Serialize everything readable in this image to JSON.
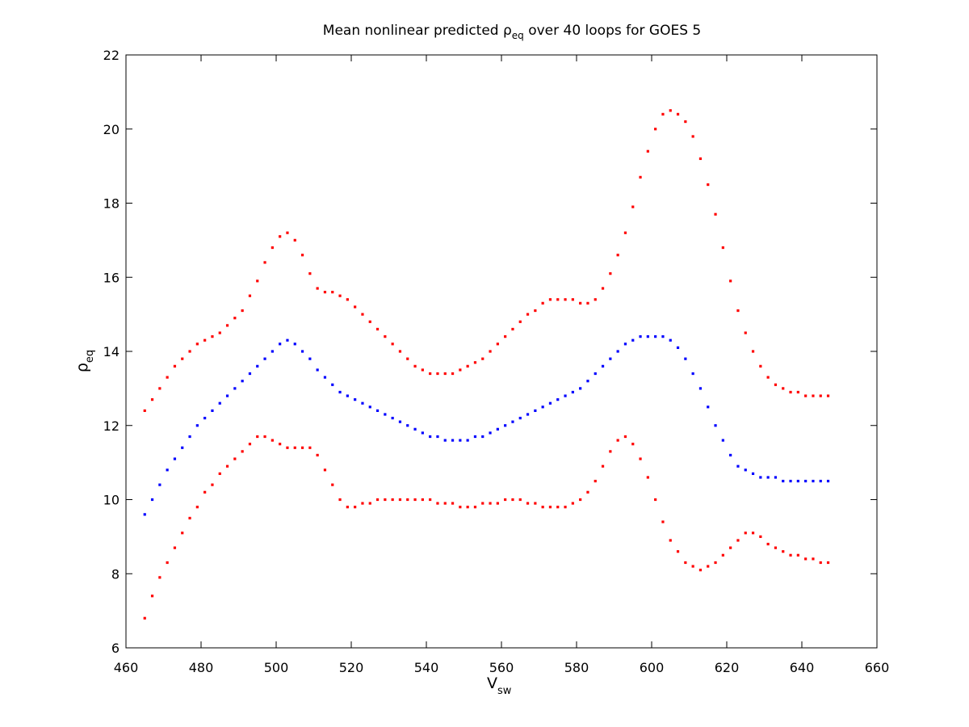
{
  "chart_data": {
    "type": "scatter",
    "title": {
      "prefix": "Mean nonlinear predicted ",
      "symbol": "ρ",
      "subscript": "eq",
      "suffix": " over 40 loops for GOES 5"
    },
    "xlabel": {
      "main": "V",
      "subscript": "sw"
    },
    "ylabel": {
      "main": "ρ",
      "subscript": "eq"
    },
    "xlim": [
      460,
      660
    ],
    "ylim": [
      6,
      22
    ],
    "xticks": [
      "460",
      "480",
      "500",
      "520",
      "540",
      "560",
      "580",
      "600",
      "620",
      "640",
      "660"
    ],
    "yticks": [
      "6",
      "8",
      "10",
      "12",
      "14",
      "16",
      "18",
      "20",
      "22"
    ],
    "grid": false,
    "legend": "none",
    "x": [
      465,
      467,
      469,
      471,
      473,
      475,
      477,
      479,
      481,
      483,
      485,
      487,
      489,
      491,
      493,
      495,
      497,
      499,
      501,
      503,
      505,
      507,
      509,
      511,
      513,
      515,
      517,
      519,
      521,
      523,
      525,
      527,
      529,
      531,
      533,
      535,
      537,
      539,
      541,
      543,
      545,
      547,
      549,
      551,
      553,
      555,
      557,
      559,
      561,
      563,
      565,
      567,
      569,
      571,
      573,
      575,
      577,
      579,
      581,
      583,
      585,
      587,
      589,
      591,
      593,
      595,
      597,
      599,
      601,
      603,
      605,
      607,
      609,
      611,
      613,
      615,
      617,
      619,
      621,
      623,
      625,
      627,
      629,
      631,
      633,
      635,
      637,
      639,
      641,
      643,
      645,
      647
    ],
    "series": [
      {
        "color": "#ff0000",
        "values": [
          12.4,
          12.7,
          13.0,
          13.3,
          13.6,
          13.8,
          14.0,
          14.2,
          14.3,
          14.4,
          14.5,
          14.7,
          14.9,
          15.1,
          15.5,
          15.9,
          16.4,
          16.8,
          17.1,
          17.2,
          17.0,
          16.6,
          16.1,
          15.7,
          15.6,
          15.6,
          15.5,
          15.4,
          15.2,
          15.0,
          14.8,
          14.6,
          14.4,
          14.2,
          14.0,
          13.8,
          13.6,
          13.5,
          13.4,
          13.4,
          13.4,
          13.4,
          13.5,
          13.6,
          13.7,
          13.8,
          14.0,
          14.2,
          14.4,
          14.6,
          14.8,
          15.0,
          15.1,
          15.3,
          15.4,
          15.4,
          15.4,
          15.4,
          15.3,
          15.3,
          15.4,
          15.7,
          16.1,
          16.6,
          17.2,
          17.9,
          18.7,
          19.4,
          20.0,
          20.4,
          20.5,
          20.4,
          20.2,
          19.8,
          19.2,
          18.5,
          17.7,
          16.8,
          15.9,
          15.1,
          14.5,
          14.0,
          13.6,
          13.3,
          13.1,
          13.0,
          12.9,
          12.9,
          12.8,
          12.8,
          12.8,
          12.8
        ]
      },
      {
        "color": "#0000ff",
        "values": [
          9.6,
          10.0,
          10.4,
          10.8,
          11.1,
          11.4,
          11.7,
          12.0,
          12.2,
          12.4,
          12.6,
          12.8,
          13.0,
          13.2,
          13.4,
          13.6,
          13.8,
          14.0,
          14.2,
          14.3,
          14.2,
          14.0,
          13.8,
          13.5,
          13.3,
          13.1,
          12.9,
          12.8,
          12.7,
          12.6,
          12.5,
          12.4,
          12.3,
          12.2,
          12.1,
          12.0,
          11.9,
          11.8,
          11.7,
          11.7,
          11.6,
          11.6,
          11.6,
          11.6,
          11.7,
          11.7,
          11.8,
          11.9,
          12.0,
          12.1,
          12.2,
          12.3,
          12.4,
          12.5,
          12.6,
          12.7,
          12.8,
          12.9,
          13.0,
          13.2,
          13.4,
          13.6,
          13.8,
          14.0,
          14.2,
          14.3,
          14.4,
          14.4,
          14.4,
          14.4,
          14.3,
          14.1,
          13.8,
          13.4,
          13.0,
          12.5,
          12.0,
          11.6,
          11.2,
          10.9,
          10.8,
          10.7,
          10.6,
          10.6,
          10.6,
          10.5,
          10.5,
          10.5,
          10.5,
          10.5,
          10.5,
          10.5
        ]
      },
      {
        "color": "#ff0000",
        "values": [
          6.8,
          7.4,
          7.9,
          8.3,
          8.7,
          9.1,
          9.5,
          9.8,
          10.2,
          10.4,
          10.7,
          10.9,
          11.1,
          11.3,
          11.5,
          11.7,
          11.7,
          11.6,
          11.5,
          11.4,
          11.4,
          11.4,
          11.4,
          11.2,
          10.8,
          10.4,
          10.0,
          9.8,
          9.8,
          9.9,
          9.9,
          10.0,
          10.0,
          10.0,
          10.0,
          10.0,
          10.0,
          10.0,
          10.0,
          9.9,
          9.9,
          9.9,
          9.8,
          9.8,
          9.8,
          9.9,
          9.9,
          9.9,
          10.0,
          10.0,
          10.0,
          9.9,
          9.9,
          9.8,
          9.8,
          9.8,
          9.8,
          9.9,
          10.0,
          10.2,
          10.5,
          10.9,
          11.3,
          11.6,
          11.7,
          11.5,
          11.1,
          10.6,
          10.0,
          9.4,
          8.9,
          8.6,
          8.3,
          8.2,
          8.1,
          8.2,
          8.3,
          8.5,
          8.7,
          8.9,
          9.1,
          9.1,
          9.0,
          8.8,
          8.7,
          8.6,
          8.5,
          8.5,
          8.4,
          8.4,
          8.3,
          8.3
        ]
      }
    ]
  }
}
